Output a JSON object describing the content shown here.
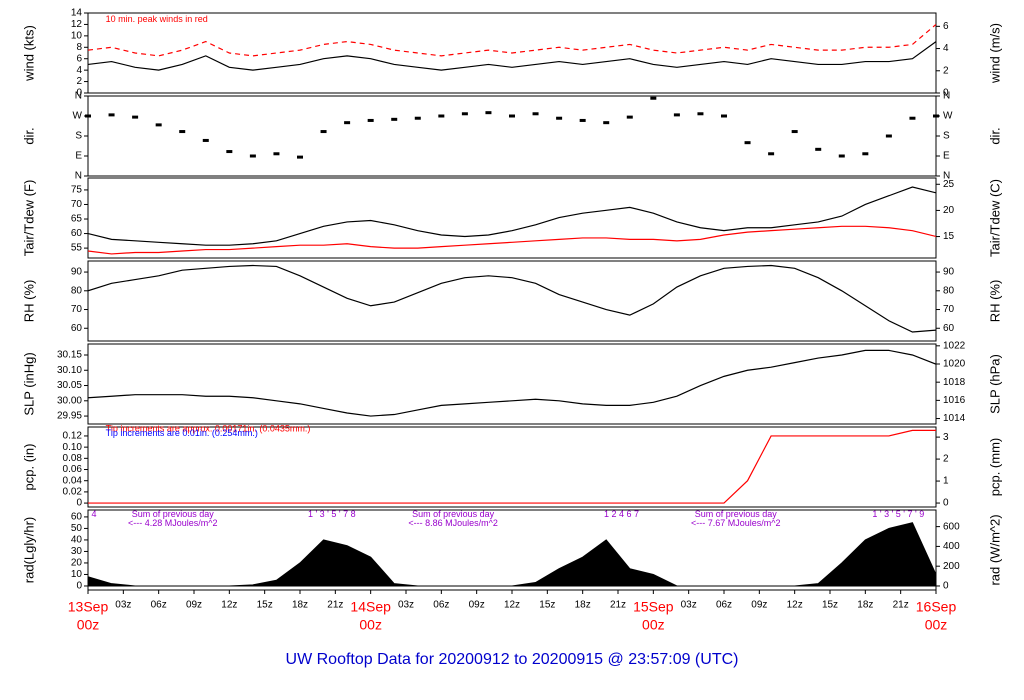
{
  "title": "UW Rooftop Data for 20200912  to  20200915 @ 23:57:09  (UTC)",
  "chart_data": [
    {
      "type": "line",
      "y_label": "wind (kts)",
      "y2_label": "wind (m/s)",
      "xlim": [
        0,
        72
      ],
      "ylim": [
        0,
        14
      ],
      "yticks": [
        0,
        2,
        4,
        6,
        8,
        10,
        12,
        14
      ],
      "y2lim": [
        0,
        7.2
      ],
      "y2ticks": [
        0,
        2,
        4,
        6
      ],
      "annotations": [
        {
          "text": "10 min. peak winds in red",
          "color": "#ff0000",
          "x": 1.5,
          "y": 12.8
        }
      ],
      "x": [
        0,
        2,
        4,
        6,
        8,
        10,
        12,
        14,
        16,
        18,
        20,
        22,
        24,
        26,
        28,
        30,
        32,
        34,
        36,
        38,
        40,
        42,
        44,
        46,
        48,
        50,
        52,
        54,
        56,
        58,
        60,
        62,
        64,
        66,
        68,
        70,
        72
      ],
      "series": [
        {
          "color": "#ff0000",
          "style": "dash",
          "values": [
            7.5,
            8,
            7,
            6.5,
            7.5,
            9,
            7,
            6.5,
            7,
            7.5,
            8.5,
            9,
            8.5,
            7.5,
            7,
            6.5,
            7,
            7.5,
            7,
            7.5,
            8,
            7.5,
            8,
            8.5,
            7.5,
            7,
            7.5,
            8,
            7.5,
            8.5,
            8,
            7.5,
            7.5,
            8,
            8,
            8.5,
            12
          ]
        },
        {
          "color": "#000000",
          "values": [
            5,
            5.5,
            4.5,
            4,
            5,
            6.5,
            4.5,
            4,
            4.5,
            5,
            6,
            6.5,
            6,
            5,
            4.5,
            4,
            4.5,
            5,
            4.5,
            5,
            5.5,
            5,
            5.5,
            6,
            5,
            4.5,
            5,
            5.5,
            5,
            6,
            5.5,
            5,
            5,
            5.5,
            5.5,
            6,
            9
          ]
        }
      ]
    },
    {
      "type": "scatter",
      "y_label": "dir.",
      "y2_label": "dir.",
      "xlim": [
        0,
        72
      ],
      "ylim": [
        0,
        360
      ],
      "yticks": [
        {
          "value": 0,
          "label": "N"
        },
        {
          "value": 90,
          "label": "E"
        },
        {
          "value": 180,
          "label": "S"
        },
        {
          "value": 270,
          "label": "W"
        },
        {
          "value": 360,
          "label": "N"
        }
      ],
      "y2lim": [
        0,
        360
      ],
      "y2ticks": [
        {
          "value": 0,
          "label": "N"
        },
        {
          "value": 90,
          "label": "E"
        },
        {
          "value": 180,
          "label": "S"
        },
        {
          "value": 270,
          "label": "W"
        },
        {
          "value": 360,
          "label": "N"
        }
      ],
      "x": [
        0,
        2,
        4,
        6,
        8,
        10,
        12,
        14,
        16,
        18,
        20,
        22,
        24,
        26,
        28,
        30,
        32,
        34,
        36,
        38,
        40,
        42,
        44,
        46,
        48,
        50,
        52,
        54,
        56,
        58,
        60,
        62,
        64,
        66,
        68,
        70,
        72
      ],
      "series": [
        {
          "color": "#000000",
          "values": [
            270,
            275,
            265,
            230,
            200,
            160,
            110,
            90,
            100,
            85,
            200,
            240,
            250,
            255,
            260,
            270,
            280,
            285,
            270,
            280,
            260,
            250,
            240,
            265,
            350,
            275,
            280,
            270,
            150,
            100,
            200,
            120,
            90,
            100,
            180,
            260,
            270
          ]
        }
      ]
    },
    {
      "type": "line",
      "y_label": "Tair/Tdew (F)",
      "y2_label": "Tair/Tdew (C)",
      "xlim": [
        0,
        72
      ],
      "ylim": [
        51.6,
        79.1
      ],
      "yticks": [
        55,
        60,
        65,
        70,
        75
      ],
      "y2lim": [
        10.9,
        26.2
      ],
      "y2ticks": [
        15,
        20,
        25
      ],
      "x": [
        0,
        2,
        4,
        6,
        8,
        10,
        12,
        14,
        16,
        18,
        20,
        22,
        24,
        26,
        28,
        30,
        32,
        34,
        36,
        38,
        40,
        42,
        44,
        46,
        48,
        50,
        52,
        54,
        56,
        58,
        60,
        62,
        64,
        66,
        68,
        70,
        72
      ],
      "series": [
        {
          "color": "#000000",
          "values": [
            60,
            58,
            57.5,
            57,
            56.5,
            56,
            56,
            56.5,
            57.5,
            60,
            62.5,
            64,
            64.5,
            63,
            61,
            59.5,
            59,
            59.5,
            61,
            63,
            65.5,
            67,
            68,
            69,
            67,
            64,
            62,
            61,
            62,
            62,
            63,
            64,
            66,
            70,
            73,
            76,
            74
          ]
        },
        {
          "color": "#ff0000",
          "values": [
            54,
            53,
            53.5,
            53.5,
            54,
            54.5,
            54.5,
            55,
            55.5,
            56,
            56,
            56.5,
            55.5,
            55,
            55,
            55.5,
            56,
            56.5,
            57,
            57.5,
            58,
            58.5,
            58.5,
            58,
            58,
            57.5,
            58,
            59.5,
            60.5,
            61,
            61.5,
            62,
            62.5,
            62.5,
            62,
            61,
            59
          ]
        }
      ]
    },
    {
      "type": "line",
      "y_label": "RH (%)",
      "y2_label": "RH (%)",
      "xlim": [
        0,
        72
      ],
      "ylim": [
        53.2,
        95.9
      ],
      "yticks": [
        60,
        70,
        80,
        90
      ],
      "y2lim": [
        53.2,
        95.9
      ],
      "y2ticks": [
        60,
        70,
        80,
        90
      ],
      "x": [
        0,
        2,
        4,
        6,
        8,
        10,
        12,
        14,
        16,
        18,
        20,
        22,
        24,
        26,
        28,
        30,
        32,
        34,
        36,
        38,
        40,
        42,
        44,
        46,
        48,
        50,
        52,
        54,
        56,
        58,
        60,
        62,
        64,
        66,
        68,
        70,
        72
      ],
      "series": [
        {
          "color": "#000000",
          "values": [
            80,
            84,
            86,
            88,
            91,
            92,
            93,
            93.5,
            93,
            88,
            82,
            76,
            72,
            74,
            79,
            84,
            87,
            88,
            87,
            84,
            78,
            74,
            70,
            67,
            73,
            82,
            88,
            92,
            93,
            93.5,
            92,
            87,
            80,
            72,
            64,
            58,
            59
          ]
        }
      ]
    },
    {
      "type": "line",
      "y_label": "SLP (inHg)",
      "y2_label": "SLP (hPa)",
      "xlim": [
        0,
        72
      ],
      "ylim": [
        29.924,
        30.186
      ],
      "yticks": [
        {
          "value": 29.95,
          "label": "29.95"
        },
        {
          "value": 30,
          "label": "30.00"
        },
        {
          "value": 30.05,
          "label": "30.05"
        },
        {
          "value": 30.1,
          "label": "30.10"
        },
        {
          "value": 30.15,
          "label": "30.15"
        }
      ],
      "y2lim": [
        1013.4,
        1022.2
      ],
      "y2ticks": [
        1014,
        1016,
        1018,
        1020,
        1022
      ],
      "x": [
        0,
        2,
        4,
        6,
        8,
        10,
        12,
        14,
        16,
        18,
        20,
        22,
        24,
        26,
        28,
        30,
        32,
        34,
        36,
        38,
        40,
        42,
        44,
        46,
        48,
        50,
        52,
        54,
        56,
        58,
        60,
        62,
        64,
        66,
        68,
        70,
        72
      ],
      "series": [
        {
          "color": "#000000",
          "values": [
            30.01,
            30.015,
            30.02,
            30.02,
            30.02,
            30.015,
            30.015,
            30.01,
            30.0,
            29.99,
            29.975,
            29.96,
            29.95,
            29.955,
            29.97,
            29.985,
            29.99,
            29.995,
            30.0,
            30.005,
            30.0,
            29.99,
            29.985,
            29.985,
            29.995,
            30.015,
            30.05,
            30.08,
            30.1,
            30.11,
            30.125,
            30.14,
            30.15,
            30.165,
            30.165,
            30.15,
            30.12
          ]
        }
      ]
    },
    {
      "type": "line",
      "y_label": "pcp. (in)",
      "y2_label": "pcp. (mm)",
      "xlim": [
        0,
        72
      ],
      "ylim": [
        -0.007,
        0.136
      ],
      "yticks": [
        0,
        {
          "value": 0.02,
          "label": "0.02"
        },
        {
          "value": 0.04,
          "label": "0.04"
        },
        {
          "value": 0.06,
          "label": "0.06"
        },
        {
          "value": 0.08,
          "label": "0.08"
        },
        {
          "value": 0.1,
          "label": "0.10"
        },
        {
          "value": 0.12,
          "label": "0.12"
        }
      ],
      "y2lim": [
        -0.18,
        3.46
      ],
      "y2ticks": [
        0,
        1,
        2,
        3
      ],
      "annotations": [
        {
          "text": "Tip increments are approx. 0.00171in. (0.0435mm.)",
          "color": "#ff0000",
          "x": 1.5,
          "y": 0.132
        },
        {
          "text": "Tip increments are 0.01in. (0.254mm.)",
          "color": "#0000ff",
          "x": 1.5,
          "y": 0.124
        }
      ],
      "x": [
        0,
        2,
        4,
        6,
        8,
        10,
        12,
        14,
        16,
        18,
        20,
        22,
        24,
        26,
        28,
        30,
        32,
        34,
        36,
        38,
        40,
        42,
        44,
        46,
        48,
        50,
        52,
        54,
        56,
        58,
        60,
        62,
        64,
        66,
        68,
        70,
        72
      ],
      "series": [
        {
          "color": "#ff0000",
          "values": [
            0,
            0,
            0,
            0,
            0,
            0,
            0,
            0,
            0,
            0,
            0,
            0,
            0,
            0,
            0,
            0,
            0,
            0,
            0,
            0,
            0,
            0,
            0,
            0,
            0,
            0,
            0,
            0,
            0.04,
            0.12,
            0.12,
            0.12,
            0.12,
            0.12,
            0.12,
            0.13,
            0.13
          ]
        }
      ]
    },
    {
      "type": "area",
      "y_label": "rad(Lgly/hr)",
      "y2_label": "rad (W/m^2)",
      "xlim": [
        0,
        72
      ],
      "ylim": [
        -3.5,
        66
      ],
      "yticks": [
        0,
        10,
        20,
        30,
        40,
        50,
        60
      ],
      "y2lim": [
        -40.7,
        768
      ],
      "y2ticks": [
        0,
        200,
        400,
        600
      ],
      "xticks": [
        {
          "value": 0,
          "label": "00z"
        },
        {
          "value": 3,
          "label": "03z"
        },
        {
          "value": 6,
          "label": "06z"
        },
        {
          "value": 9,
          "label": "09z"
        },
        {
          "value": 12,
          "label": "12z"
        },
        {
          "value": 15,
          "label": "15z"
        },
        {
          "value": 18,
          "label": "18z"
        },
        {
          "value": 21,
          "label": "21z"
        },
        {
          "value": 24,
          "label": "00z"
        },
        {
          "value": 27,
          "label": "03z"
        },
        {
          "value": 30,
          "label": "06z"
        },
        {
          "value": 33,
          "label": "09z"
        },
        {
          "value": 36,
          "label": "12z"
        },
        {
          "value": 39,
          "label": "15z"
        },
        {
          "value": 42,
          "label": "18z"
        },
        {
          "value": 45,
          "label": "21z"
        },
        {
          "value": 48,
          "label": "00z"
        },
        {
          "value": 51,
          "label": "03z"
        },
        {
          "value": 54,
          "label": "06z"
        },
        {
          "value": 57,
          "label": "09z"
        },
        {
          "value": 60,
          "label": "12z"
        },
        {
          "value": 63,
          "label": "15z"
        },
        {
          "value": 66,
          "label": "18z"
        },
        {
          "value": 69,
          "label": "21z"
        },
        {
          "value": 72,
          "label": "00z"
        }
      ],
      "days": [
        {
          "value": 0,
          "label": "13Sep"
        },
        {
          "value": 24,
          "label": "14Sep"
        },
        {
          "value": 48,
          "label": "15Sep"
        },
        {
          "value": 72,
          "label": "16Sep"
        }
      ],
      "annotations": [
        {
          "text": "4",
          "color": "#9900cc",
          "x": 0.3,
          "y": 62
        },
        {
          "text": "Sum of previous day",
          "color": "#9900cc",
          "x": 7.2,
          "y": 62
        },
        {
          "text": "<--- 4.28 MJoules/m^2",
          "color": "#9900cc",
          "x": 7.2,
          "y": 54
        },
        {
          "text": "1 ' 3 ' 5 ' 7 8",
          "color": "#9900cc",
          "x": 20.7,
          "y": 62
        },
        {
          "text": "Sum of previous day",
          "color": "#9900cc",
          "x": 31,
          "y": 62
        },
        {
          "text": "<--- 8.86 MJoules/m^2",
          "color": "#9900cc",
          "x": 31,
          "y": 54
        },
        {
          "text": "1  2  4  6  7",
          "color": "#9900cc",
          "x": 45.3,
          "y": 62
        },
        {
          "text": "Sum of previous day",
          "color": "#9900cc",
          "x": 55,
          "y": 62
        },
        {
          "text": "<--- 7.67 MJoules/m^2",
          "color": "#9900cc",
          "x": 55,
          "y": 54
        },
        {
          "text": "1 ' 3 ' 5 ' 7 ' 9",
          "color": "#9900cc",
          "x": 68.8,
          "y": 62
        }
      ],
      "x": [
        0,
        2,
        4,
        6,
        8,
        10,
        12,
        14,
        16,
        18,
        20,
        22,
        24,
        26,
        28,
        30,
        32,
        34,
        36,
        38,
        40,
        42,
        44,
        46,
        48,
        50,
        52,
        54,
        56,
        58,
        60,
        62,
        64,
        66,
        68,
        70,
        72
      ],
      "series": [
        {
          "color": "#000000",
          "values": [
            8,
            2,
            0,
            0,
            0,
            0,
            0,
            1,
            5,
            20,
            40,
            35,
            25,
            2,
            0,
            0,
            0,
            0,
            0,
            3,
            15,
            25,
            40,
            15,
            10,
            0,
            0,
            0,
            0,
            0,
            0,
            2,
            20,
            40,
            50,
            55,
            10
          ]
        }
      ]
    }
  ]
}
